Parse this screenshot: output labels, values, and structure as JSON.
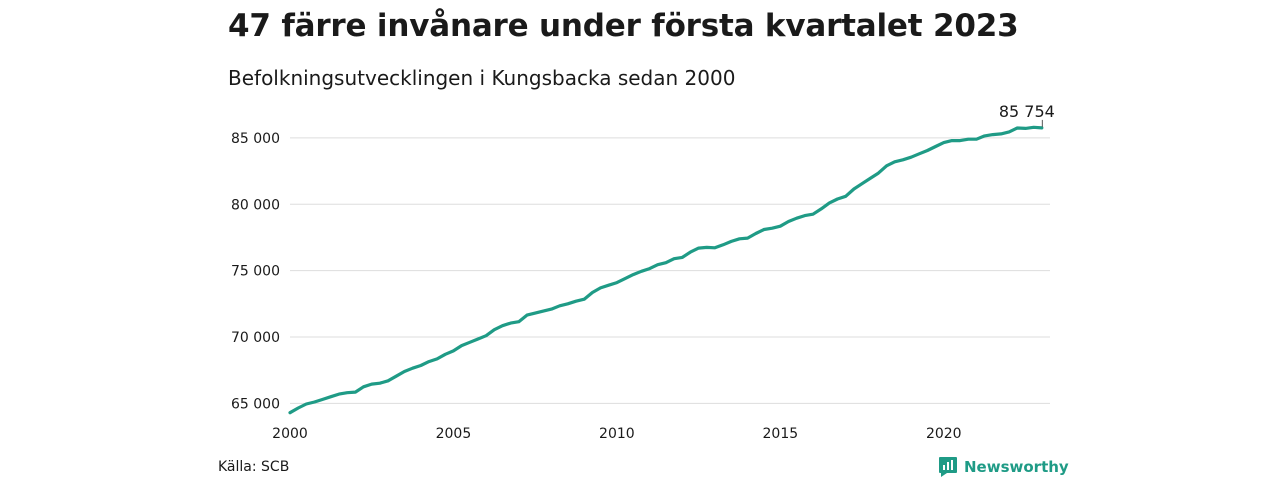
{
  "title": "47 färre invånare under första kvartalet 2023",
  "subtitle": "Befolkningsutvecklingen i Kungsbacka sedan 2000",
  "source": "Källa: SCB",
  "brand": {
    "name": "Newsworthy",
    "icon": "newsworthy-logo-icon",
    "color": "#1f9b86"
  },
  "chart_data": {
    "type": "line",
    "title": "47 färre invånare under första kvartalet 2023",
    "subtitle": "Befolkningsutvecklingen i Kungsbacka sedan 2000",
    "xlabel": "",
    "ylabel": "",
    "line_color": "#1f9b86",
    "grid": true,
    "xlim": [
      2000,
      2023.25
    ],
    "ylim": [
      64500,
      86500
    ],
    "x_ticks": [
      2000,
      2005,
      2010,
      2015,
      2020
    ],
    "x_tick_labels": [
      "2000",
      "2005",
      "2010",
      "2015",
      "2020"
    ],
    "y_ticks": [
      65000,
      70000,
      75000,
      80000,
      85000
    ],
    "y_tick_labels": [
      "65 000",
      "70 000",
      "75 000",
      "80 000",
      "85 000"
    ],
    "end_label": "85 754",
    "series": [
      {
        "x": [
          2000,
          2000.25,
          2000.5,
          2000.75,
          2001,
          2001.25,
          2001.5,
          2001.75,
          2002,
          2002.25,
          2002.5,
          2002.75,
          2003,
          2003.25,
          2003.5,
          2003.75,
          2004,
          2004.25,
          2004.5,
          2004.75,
          2005,
          2005.25,
          2005.5,
          2005.75,
          2006,
          2006.25,
          2006.5,
          2006.75,
          2007,
          2007.25,
          2007.5,
          2007.75,
          2008,
          2008.25,
          2008.5,
          2008.75,
          2009,
          2009.25,
          2009.5,
          2009.75,
          2010,
          2010.25,
          2010.5,
          2010.75,
          2011,
          2011.25,
          2011.5,
          2011.75,
          2012,
          2012.25,
          2012.5,
          2012.75,
          2013,
          2013.25,
          2013.5,
          2013.75,
          2014,
          2014.25,
          2014.5,
          2014.75,
          2015,
          2015.25,
          2015.5,
          2015.75,
          2016,
          2016.25,
          2016.5,
          2016.75,
          2017,
          2017.25,
          2017.5,
          2017.75,
          2018,
          2018.25,
          2018.5,
          2018.75,
          2019,
          2019.25,
          2019.5,
          2019.75,
          2020,
          2020.25,
          2020.5,
          2020.75,
          2021,
          2021.25,
          2021.5,
          2021.75,
          2022,
          2022.25,
          2022.5,
          2022.75,
          2023
        ],
        "y": [
          64300,
          64650,
          64950,
          65100,
          65300,
          65500,
          65700,
          65800,
          65850,
          66250,
          66450,
          66520,
          66700,
          67050,
          67400,
          67650,
          67850,
          68150,
          68350,
          68700,
          68950,
          69350,
          69600,
          69850,
          70100,
          70550,
          70850,
          71050,
          71150,
          71650,
          71800,
          71950,
          72100,
          72350,
          72500,
          72700,
          72850,
          73350,
          73700,
          73900,
          74100,
          74400,
          74700,
          74950,
          75150,
          75450,
          75600,
          75900,
          76000,
          76400,
          76700,
          76750,
          76720,
          76950,
          77200,
          77400,
          77450,
          77800,
          78100,
          78200,
          78350,
          78700,
          78950,
          79150,
          79250,
          79650,
          80100,
          80400,
          80600,
          81150,
          81550,
          81950,
          82350,
          82900,
          83200,
          83350,
          83550,
          83800,
          84050,
          84350,
          84650,
          84800,
          84800,
          84900,
          84900,
          85150,
          85250,
          85300,
          85450,
          85750,
          85720,
          85800,
          85754
        ]
      }
    ]
  }
}
